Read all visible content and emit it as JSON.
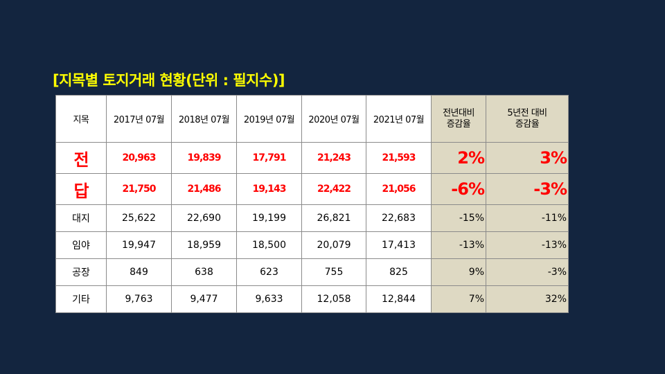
{
  "title": "[지목별 토지거래 현황(단위 : 필지수)]",
  "headers": {
    "col0": "지목",
    "years": [
      "2017년 07월",
      "2018년 07월",
      "2019년 07월",
      "2020년 07월",
      "2021년 07월"
    ],
    "yoy_line1": "전년대비",
    "yoy_line2": "증감율",
    "five_line1": "5년전 대비",
    "five_line2": "증감율"
  },
  "rows": [
    {
      "name": "전",
      "values": [
        "20,963",
        "19,839",
        "17,791",
        "21,243",
        "21,593"
      ],
      "yoy": "2%",
      "five": "3%"
    },
    {
      "name": "답",
      "values": [
        "21,750",
        "21,486",
        "19,143",
        "22,422",
        "21,056"
      ],
      "yoy": "-6%",
      "five": "-3%"
    },
    {
      "name": "대지",
      "values": [
        "25,622",
        "22,690",
        "19,199",
        "26,821",
        "22,683"
      ],
      "yoy": "-15%",
      "five": "-11%"
    },
    {
      "name": "임야",
      "values": [
        "19,947",
        "18,959",
        "18,500",
        "20,079",
        "17,413"
      ],
      "yoy": "-13%",
      "five": "-13%"
    },
    {
      "name": "공장",
      "values": [
        "849",
        "638",
        "623",
        "755",
        "825"
      ],
      "yoy": "9%",
      "five": "-3%"
    },
    {
      "name": "기타",
      "values": [
        "9,763",
        "9,477",
        "9,633",
        "12,058",
        "12,844"
      ],
      "yoy": "7%",
      "five": "32%"
    }
  ],
  "colors": {
    "background": "#13253f",
    "title": "#ffff00",
    "highlight_text": "#ff0000",
    "change_column_bg": "#ded9c3"
  }
}
